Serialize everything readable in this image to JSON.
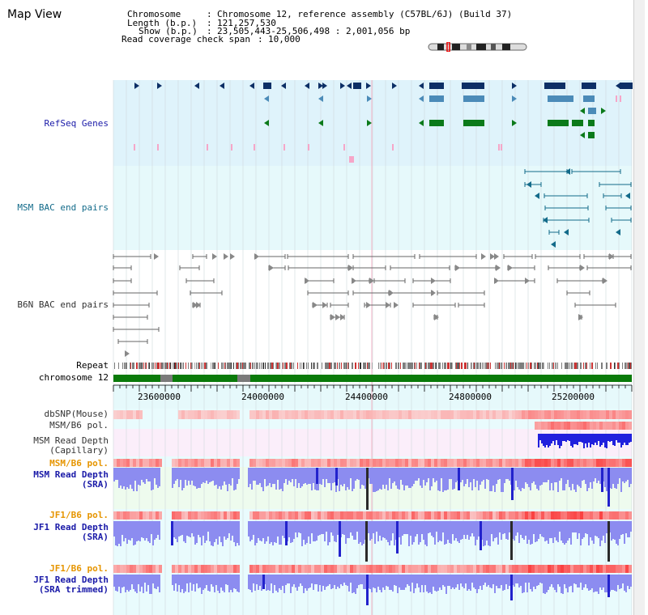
{
  "title": "Map View",
  "info": {
    "chromosome_label": "Chromosome",
    "chromosome_value": "Chromosome 12, reference assembly (C57BL/6J) (Build 37)",
    "length_label": "Length (b.p.)",
    "length_value": "121,257,530",
    "show_label": "Show (b.p.)",
    "show_value": "23,505,443-25,506,498 : 2,001,056 bp",
    "span_label": "Read coverage check span",
    "span_value": "10,000"
  },
  "tracks": {
    "refseq": "RefSeq Genes",
    "msm_bac": "MSM BAC end pairs",
    "b6n_bac": "B6N BAC end pairs",
    "repeat": "Repeat",
    "chromosome": "chromosome 12",
    "dbsnp": "dbSNP(Mouse)",
    "msm_b6_pol_1": "MSM/B6 pol.",
    "msm_depth_cap_1": "MSM Read Depth",
    "msm_depth_cap_2": "(Capillary)",
    "msm_b6_pol_2": "MSM/B6 pol.",
    "msm_depth_sra_1": "MSM Read Depth",
    "msm_depth_sra_2": "(SRA)",
    "jf1_b6_pol_1": "JF1/B6 pol.",
    "jf1_depth_sra_1": "JF1 Read Depth",
    "jf1_depth_sra_2": "(SRA)",
    "jf1_b6_pol_2": "JF1/B6 pol.",
    "jf1_depth_trim_1": "JF1 Read Depth",
    "jf1_depth_trim_2": "(SRA trimmed)"
  },
  "ruler": {
    "ticks": [
      "23600000",
      "24000000",
      "24400000",
      "24800000",
      "25200000"
    ]
  },
  "colors": {
    "refseq_bg": "#dff3fb",
    "msm_bac_bg": "#e6f9fb",
    "ruler_bg": "#e6f9fb",
    "gene_dark": "#0d2f66",
    "gene_mid": "#4b8bb8",
    "gene_green": "#0b7a1a",
    "gene_pink": "#f6a6c8",
    "msm_bac_line": "#136b8a",
    "b6n_line": "#666666",
    "chrom_green": "#0a7a0a",
    "chrom_gap": "#7a7a7a",
    "depth_blue": "#8c8cf0",
    "depth_dark": "#2a2a2a",
    "label_blue": "#1a1aa8",
    "label_orange": "#e69500",
    "label_darkgrey": "#333333"
  }
}
